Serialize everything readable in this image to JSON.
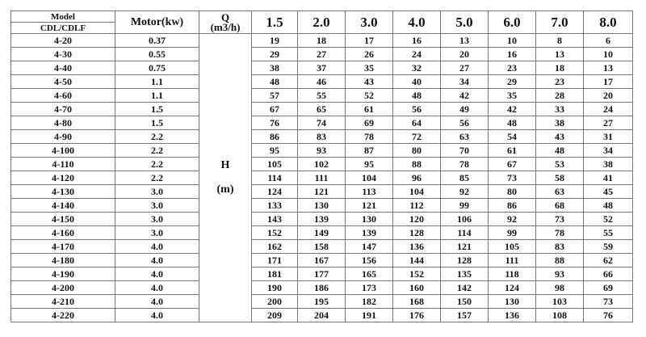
{
  "header": {
    "model_label": "Model",
    "model_sub_label": "CDL/CDLF",
    "motor_label": "Motor(kw)",
    "q_label": "Q",
    "q_unit": "(m3/h)",
    "flow_values": [
      "1.5",
      "2.0",
      "3.0",
      "4.0",
      "5.0",
      "6.0",
      "7.0",
      "8.0"
    ]
  },
  "h_label": "H",
  "h_unit": "(m)",
  "rows": [
    {
      "model": "4-20",
      "motor": "0.37",
      "h": [
        "19",
        "18",
        "17",
        "16",
        "13",
        "10",
        "8",
        "6"
      ]
    },
    {
      "model": "4-30",
      "motor": "0.55",
      "h": [
        "29",
        "27",
        "26",
        "24",
        "20",
        "16",
        "13",
        "10"
      ]
    },
    {
      "model": "4-40",
      "motor": "0.75",
      "h": [
        "38",
        "37",
        "35",
        "32",
        "27",
        "23",
        "18",
        "13"
      ]
    },
    {
      "model": "4-50",
      "motor": "1.1",
      "h": [
        "48",
        "46",
        "43",
        "40",
        "34",
        "29",
        "23",
        "17"
      ]
    },
    {
      "model": "4-60",
      "motor": "1.1",
      "h": [
        "57",
        "55",
        "52",
        "48",
        "42",
        "35",
        "28",
        "20"
      ]
    },
    {
      "model": "4-70",
      "motor": "1.5",
      "h": [
        "67",
        "65",
        "61",
        "56",
        "49",
        "42",
        "33",
        "24"
      ]
    },
    {
      "model": "4-80",
      "motor": "1.5",
      "h": [
        "76",
        "74",
        "69",
        "64",
        "56",
        "48",
        "38",
        "27"
      ]
    },
    {
      "model": "4-90",
      "motor": "2.2",
      "h": [
        "86",
        "83",
        "78",
        "72",
        "63",
        "54",
        "43",
        "31"
      ]
    },
    {
      "model": "4-100",
      "motor": "2.2",
      "h": [
        "95",
        "93",
        "87",
        "80",
        "70",
        "61",
        "48",
        "34"
      ]
    },
    {
      "model": "4-110",
      "motor": "2.2",
      "h": [
        "105",
        "102",
        "95",
        "88",
        "78",
        "67",
        "53",
        "38"
      ]
    },
    {
      "model": "4-120",
      "motor": "2.2",
      "h": [
        "114",
        "111",
        "104",
        "96",
        "85",
        "73",
        "58",
        "41"
      ]
    },
    {
      "model": "4-130",
      "motor": "3.0",
      "h": [
        "124",
        "121",
        "113",
        "104",
        "92",
        "80",
        "63",
        "45"
      ]
    },
    {
      "model": "4-140",
      "motor": "3.0",
      "h": [
        "133",
        "130",
        "121",
        "112",
        "99",
        "86",
        "68",
        "48"
      ]
    },
    {
      "model": "4-150",
      "motor": "3.0",
      "h": [
        "143",
        "139",
        "130",
        "120",
        "106",
        "92",
        "73",
        "52"
      ]
    },
    {
      "model": "4-160",
      "motor": "3.0",
      "h": [
        "152",
        "149",
        "139",
        "128",
        "114",
        "99",
        "78",
        "55"
      ]
    },
    {
      "model": "4-170",
      "motor": "4.0",
      "h": [
        "162",
        "158",
        "147",
        "136",
        "121",
        "105",
        "83",
        "59"
      ]
    },
    {
      "model": "4-180",
      "motor": "4.0",
      "h": [
        "171",
        "167",
        "156",
        "144",
        "128",
        "111",
        "88",
        "62"
      ]
    },
    {
      "model": "4-190",
      "motor": "4.0",
      "h": [
        "181",
        "177",
        "165",
        "152",
        "135",
        "118",
        "93",
        "66"
      ]
    },
    {
      "model": "4-200",
      "motor": "4.0",
      "h": [
        "190",
        "186",
        "173",
        "160",
        "142",
        "124",
        "98",
        "69"
      ]
    },
    {
      "model": "4-210",
      "motor": "4.0",
      "h": [
        "200",
        "195",
        "182",
        "168",
        "150",
        "130",
        "103",
        "73"
      ]
    },
    {
      "model": "4-220",
      "motor": "4.0",
      "h": [
        "209",
        "204",
        "191",
        "176",
        "157",
        "136",
        "108",
        "76"
      ]
    }
  ]
}
